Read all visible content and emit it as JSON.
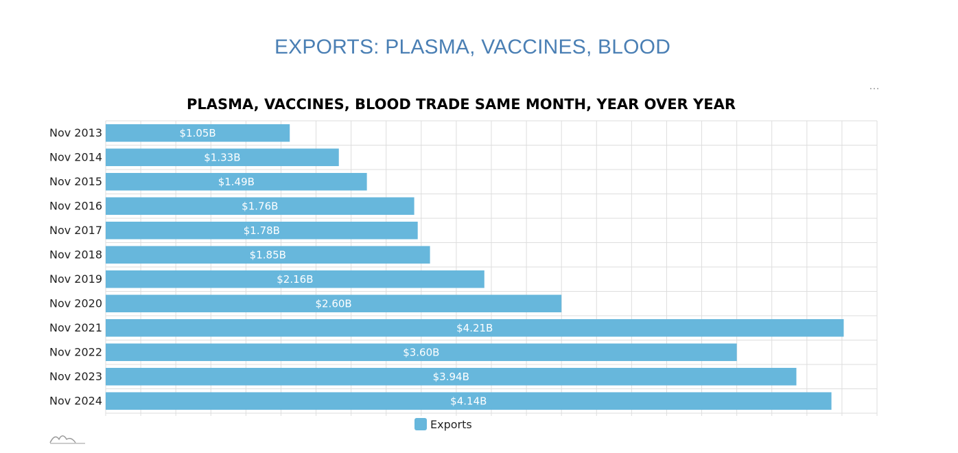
{
  "page": {
    "title": "EXPORTS: PLASMA, VACCINES, BLOOD",
    "menu_glyph": "…"
  },
  "colors": {
    "bar": "#67b7dc",
    "title": "#4a7fb4",
    "grid": "#dddddd"
  },
  "chart_data": {
    "type": "bar",
    "orientation": "horizontal",
    "title": "PLASMA, VACCINES, BLOOD TRADE SAME MONTH, YEAR OVER YEAR",
    "categories": [
      "Nov 2013",
      "Nov 2014",
      "Nov 2015",
      "Nov 2016",
      "Nov 2017",
      "Nov 2018",
      "Nov 2019",
      "Nov 2020",
      "Nov 2021",
      "Nov 2022",
      "Nov 2023",
      "Nov 2024"
    ],
    "series": [
      {
        "name": "Exports",
        "values": [
          1.05,
          1.33,
          1.49,
          1.76,
          1.78,
          1.85,
          2.16,
          2.6,
          4.21,
          3.6,
          3.94,
          4.14
        ],
        "labels": [
          "$1.05B",
          "$1.33B",
          "$1.49B",
          "$1.76B",
          "$1.78B",
          "$1.85B",
          "$2.16B",
          "$2.60B",
          "$4.21B",
          "$3.60B",
          "$3.94B",
          "$4.14B"
        ]
      }
    ],
    "xlim": [
      0,
      4.4
    ],
    "x_grid_step": 0.2,
    "xlabel": "",
    "ylabel": "",
    "grid": true,
    "legend": "bottom-center"
  }
}
